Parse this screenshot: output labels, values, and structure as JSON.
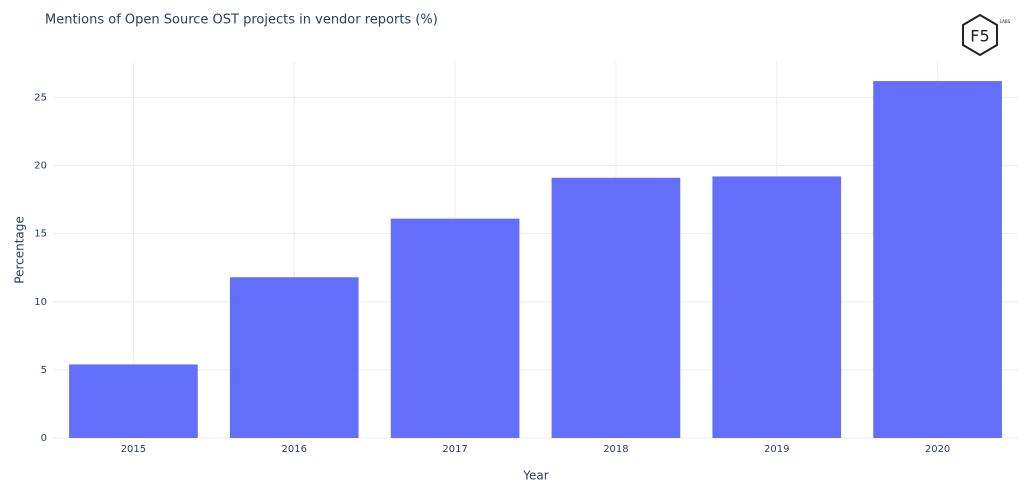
{
  "chart_data": {
    "type": "bar",
    "title": "Mentions of Open Source OST projects in vendor reports (%)",
    "x_label": "Year",
    "y_label": "Percentage",
    "categories": [
      "2015",
      "2016",
      "2017",
      "2018",
      "2019",
      "2020"
    ],
    "values": [
      5.4,
      11.8,
      16.1,
      19.1,
      19.2,
      26.2
    ],
    "color": "#636efa",
    "ylim": [
      0,
      27.6
    ],
    "yticks": [
      0,
      5,
      10,
      15,
      20,
      25
    ],
    "grid": true
  },
  "logo": {
    "text": "F5",
    "sub": "LABS"
  }
}
